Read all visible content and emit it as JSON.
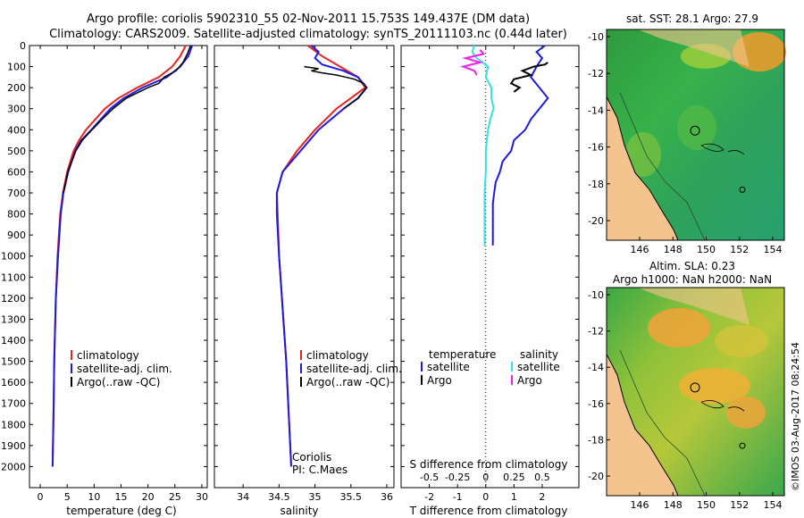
{
  "header": {
    "line1": "Argo profile: coriolis 5902310_55 02-Nov-2011 15.753S 149.437E (DM data)",
    "line2": "Climatology: CARS2009. Satellite-adjusted climatology: synTS_20111103.nc (0.44d later)"
  },
  "colors": {
    "climatology": "#e8231e",
    "satellite": "#1c1ce0",
    "argo": "#000000",
    "salinity_sat": "#33e0e6",
    "salinity_argo": "#ee22e8",
    "land": "#f5c48e",
    "sea_green": "#2ca02c"
  },
  "depth_axis": {
    "ticks": [
      0,
      100,
      200,
      300,
      400,
      500,
      600,
      700,
      800,
      900,
      1000,
      1100,
      1200,
      1300,
      1400,
      1500,
      1600,
      1700,
      1800,
      1900,
      2000
    ],
    "ylim": [
      0,
      2100
    ]
  },
  "chart_data": [
    {
      "type": "line",
      "id": "temperature",
      "xlabel": "temperature (deg C)",
      "xticks": [
        0,
        5,
        10,
        15,
        20,
        25,
        30
      ],
      "xlim": [
        -2,
        31
      ],
      "legend": [
        "climatology",
        "satellite-adj. clim.",
        "Argo(..raw -QC)"
      ],
      "series": [
        {
          "name": "climatology",
          "depth": [
            0,
            50,
            100,
            150,
            200,
            250,
            300,
            400,
            450,
            500,
            600,
            700,
            800,
            1000,
            1200,
            1500,
            1700,
            2000
          ],
          "values": [
            27.0,
            26.0,
            24.5,
            22.0,
            18.0,
            14.5,
            12.0,
            8.5,
            7.2,
            6.2,
            5.0,
            4.2,
            3.7,
            3.2,
            2.9,
            2.6,
            2.5,
            2.3
          ]
        },
        {
          "name": "satellite-adj. clim.",
          "depth": [
            0,
            50,
            100,
            150,
            200,
            250,
            300,
            400,
            450,
            500,
            600,
            700,
            800,
            1000,
            1200,
            1500,
            1700,
            2000
          ],
          "values": [
            28.2,
            27.5,
            26.0,
            23.5,
            19.0,
            15.5,
            13.0,
            9.5,
            7.6,
            6.5,
            5.2,
            4.3,
            3.8,
            3.3,
            2.9,
            2.6,
            2.5,
            2.3
          ]
        },
        {
          "name": "Argo",
          "depth": [
            0,
            40,
            80,
            120,
            150,
            180,
            200,
            250,
            300,
            350,
            400,
            450,
            500,
            600,
            700
          ],
          "values": [
            27.9,
            27.3,
            26.5,
            25.2,
            23.0,
            22.0,
            20.0,
            16.0,
            13.5,
            11.5,
            9.6,
            7.8,
            6.6,
            5.1,
            4.3
          ]
        }
      ]
    },
    {
      "type": "line",
      "id": "salinity",
      "xlabel": "salinity",
      "xticks": [
        34,
        34.5,
        35,
        35.5,
        36
      ],
      "xlim": [
        33.6,
        36.1
      ],
      "legend": [
        "climatology",
        "satellite-adj. clim.",
        "Argo(..raw -QC)"
      ],
      "annotation": [
        "Coriolis",
        "PI: C.Maes"
      ],
      "series": [
        {
          "name": "climatology",
          "depth": [
            0,
            50,
            100,
            150,
            200,
            250,
            300,
            400,
            500,
            600,
            700,
            800,
            1000,
            1500,
            2000
          ],
          "values": [
            34.9,
            35.1,
            35.35,
            35.6,
            35.7,
            35.5,
            35.3,
            35.0,
            34.75,
            34.55,
            34.47,
            34.48,
            34.5,
            34.6,
            34.67
          ]
        },
        {
          "name": "satellite-adj. clim.",
          "depth": [
            0,
            30,
            60,
            90,
            120,
            150,
            200,
            250,
            300,
            400,
            500,
            600,
            700,
            800,
            1000,
            1500,
            2000
          ],
          "values": [
            34.95,
            35.05,
            35.0,
            35.1,
            35.4,
            35.6,
            35.72,
            35.6,
            35.4,
            35.05,
            34.8,
            34.55,
            34.47,
            34.47,
            34.5,
            34.6,
            34.67
          ]
        },
        {
          "name": "Argo",
          "depth": [
            100,
            110,
            120,
            130,
            140,
            160,
            180,
            200,
            250,
            300
          ],
          "values": [
            34.85,
            35.05,
            34.95,
            35.1,
            35.3,
            35.55,
            35.68,
            35.72,
            35.6,
            35.4
          ]
        }
      ]
    },
    {
      "type": "line",
      "id": "differences",
      "xlabel_bottom": "T difference from climatology",
      "xlabel_top": "S difference from climatology",
      "xticks_T": [
        -2,
        -1,
        0,
        1,
        2
      ],
      "xticks_T_labels": [
        "-2",
        "-1",
        "0",
        "1",
        "2"
      ],
      "xticks_S": [
        -0.5,
        -0.25,
        0,
        0.25,
        0.5
      ],
      "xticks_S_labels": [
        "-0.5",
        "-0.25",
        "0",
        "0.25",
        "0.5"
      ],
      "xlim_T": [
        -3,
        3.3
      ],
      "legend": {
        "temperature_title": "temperature",
        "salinity_title": "salinity",
        "t_sat": "satellite",
        "t_argo": "Argo",
        "s_sat": "satellite",
        "s_argo": "Argo"
      },
      "series": [
        {
          "name": "T satellite",
          "depth": [
            0,
            30,
            60,
            100,
            150,
            200,
            250,
            300,
            350,
            400,
            450,
            500,
            550,
            600,
            650,
            700,
            750,
            800,
            850,
            900,
            950
          ],
          "values": [
            2.1,
            1.8,
            2.0,
            1.8,
            1.6,
            1.9,
            2.2,
            1.9,
            1.6,
            1.4,
            1.0,
            0.9,
            0.6,
            0.5,
            0.35,
            0.3,
            0.25,
            0.25,
            0.25,
            0.25,
            0.25
          ]
        },
        {
          "name": "T Argo",
          "depth": [
            80,
            90,
            100,
            120,
            140,
            160,
            180,
            200,
            220
          ],
          "values": [
            2.2,
            2.1,
            1.7,
            1.3,
            1.6,
            1.0,
            0.9,
            1.2,
            1.0
          ]
        },
        {
          "name": "S satellite",
          "depth": [
            0,
            30,
            60,
            100,
            150,
            200,
            250,
            300,
            350,
            400,
            500,
            600,
            700,
            800,
            900,
            950
          ],
          "values": [
            -0.1,
            -0.12,
            -0.08,
            0.02,
            0.0,
            0.05,
            0.05,
            0.07,
            0.04,
            0.02,
            0.0,
            0.0,
            -0.01,
            -0.01,
            -0.01,
            -0.01
          ]
        },
        {
          "name": "S Argo",
          "depth": [
            20,
            40,
            60,
            80,
            100,
            120,
            140
          ],
          "values": [
            -0.05,
            -0.02,
            -0.18,
            -0.05,
            -0.2,
            -0.1,
            -0.08
          ]
        }
      ]
    }
  ],
  "maps": [
    {
      "title": "sat. SST: 28.1 Argo: 27.9",
      "yticks": [
        "-10",
        "-12",
        "-14",
        "-16",
        "-18",
        "-20"
      ],
      "xticks": [
        "146",
        "148",
        "150",
        "152",
        "154"
      ],
      "variant": "sst"
    },
    {
      "title_line1": "Altim. SLA: 0.23",
      "title_line2": "Argo h1000: NaN h2000: NaN",
      "yticks": [
        "-10",
        "-12",
        "-14",
        "-16",
        "-18",
        "-20"
      ],
      "xticks": [
        "146",
        "148",
        "150",
        "152",
        "154"
      ],
      "variant": "sla"
    }
  ],
  "credit": "©IMOS 03-Aug-2017 08:24:54"
}
